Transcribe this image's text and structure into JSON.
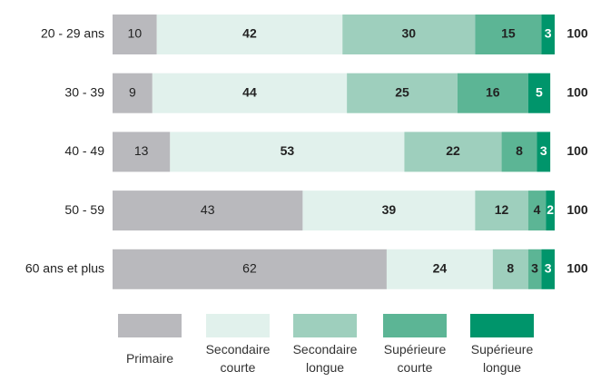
{
  "chart_data": {
    "type": "stacked_barh",
    "categories": [
      "20 - 29 ans",
      "30 - 39",
      "40 - 49",
      "50 - 59",
      "60 ans et plus"
    ],
    "series": [
      {
        "name": "Primaire",
        "color": "#b9b9bd",
        "label_color": "#222222",
        "values": [
          10,
          9,
          13,
          43,
          62
        ]
      },
      {
        "name": "Secondaire courte",
        "color": "#e1f1ec",
        "label_color": "#222222",
        "values": [
          42,
          44,
          53,
          39,
          24
        ]
      },
      {
        "name": "Secondaire longue",
        "color": "#9ecfbd",
        "label_color": "#222222",
        "values": [
          30,
          25,
          22,
          12,
          8
        ]
      },
      {
        "name": "Supérieure courte",
        "color": "#5cb595",
        "label_color": "#222222",
        "values": [
          15,
          16,
          8,
          4,
          3
        ]
      },
      {
        "name": "Supérieure longue",
        "color": "#00956b",
        "label_color": "#ffffff",
        "values": [
          3,
          5,
          3,
          2,
          3
        ]
      }
    ],
    "totals": [
      100,
      100,
      100,
      100,
      100
    ],
    "xlim": [
      0,
      100
    ]
  }
}
